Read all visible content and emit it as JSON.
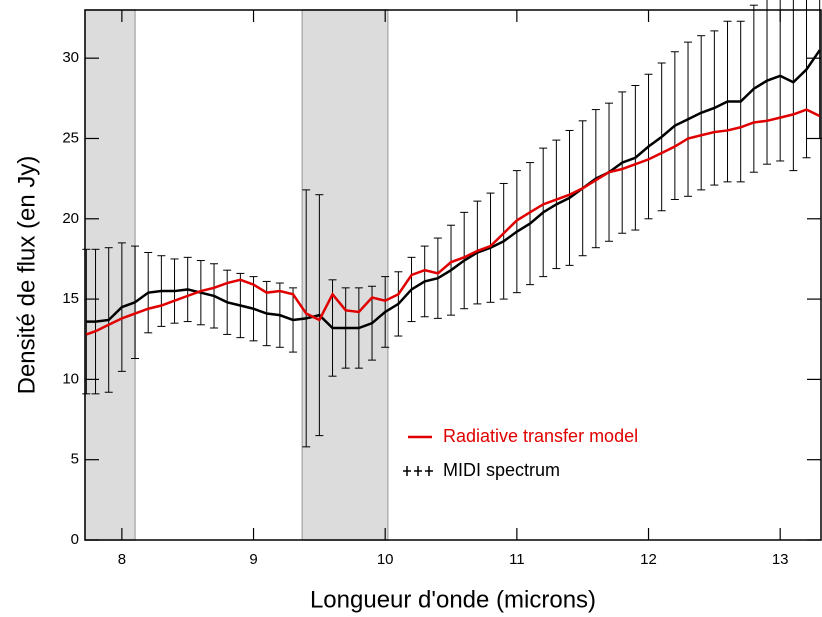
{
  "chart_data": {
    "type": "line",
    "xlabel": "Longueur d'onde (microns)",
    "ylabel": "Densité de flux (en Jy)",
    "x": [
      7.73,
      7.8,
      7.9,
      8.0,
      8.1,
      8.2,
      8.3,
      8.4,
      8.5,
      8.6,
      8.7,
      8.8,
      8.9,
      9.0,
      9.1,
      9.2,
      9.3,
      9.4,
      9.5,
      9.6,
      9.7,
      9.8,
      9.9,
      10.0,
      10.1,
      10.2,
      10.3,
      10.4,
      10.5,
      10.6,
      10.7,
      10.8,
      10.9,
      11.0,
      11.1,
      11.2,
      11.3,
      11.4,
      11.5,
      11.6,
      11.7,
      11.8,
      11.9,
      12.0,
      12.1,
      12.2,
      12.3,
      12.4,
      12.5,
      12.6,
      12.7,
      12.8,
      12.9,
      13.0,
      13.1,
      13.2,
      13.3
    ],
    "series": [
      {
        "name": "Radiative transfer model",
        "color": "#e00000",
        "values": [
          12.8,
          13.0,
          13.4,
          13.8,
          14.1,
          14.4,
          14.6,
          14.9,
          15.2,
          15.5,
          15.7,
          16.0,
          16.2,
          15.9,
          15.4,
          15.5,
          15.3,
          14.1,
          13.7,
          15.3,
          14.3,
          14.2,
          15.1,
          14.9,
          15.3,
          16.5,
          16.8,
          16.6,
          17.3,
          17.6,
          18.0,
          18.3,
          19.1,
          19.9,
          20.4,
          20.9,
          21.2,
          21.5,
          21.9,
          22.4,
          22.9,
          23.1,
          23.4,
          23.7,
          24.1,
          24.5,
          25.0,
          25.2,
          25.4,
          25.5,
          25.7,
          26.0,
          26.1,
          26.3,
          26.5,
          26.8,
          26.4
        ]
      },
      {
        "name": "MIDI spectrum",
        "color": "#000000",
        "values": [
          13.6,
          13.6,
          13.7,
          14.5,
          14.8,
          15.4,
          15.5,
          15.5,
          15.6,
          15.4,
          15.2,
          14.8,
          14.6,
          14.4,
          14.1,
          14.0,
          13.7,
          13.8,
          14.0,
          13.2,
          13.2,
          13.2,
          13.5,
          14.2,
          14.7,
          15.6,
          16.1,
          16.3,
          16.8,
          17.4,
          17.9,
          18.2,
          18.6,
          19.2,
          19.7,
          20.4,
          20.9,
          21.3,
          21.9,
          22.5,
          22.9,
          23.5,
          23.8,
          24.5,
          25.1,
          25.8,
          26.2,
          26.6,
          26.9,
          27.3,
          27.3,
          28.1,
          28.6,
          28.9,
          28.5,
          29.3,
          30.5
        ],
        "errors": [
          4.5,
          4.5,
          4.5,
          4.0,
          3.5,
          2.5,
          2.2,
          2.0,
          2.0,
          2.0,
          2.0,
          2.0,
          2.0,
          2.0,
          2.0,
          2.0,
          2.0,
          8.0,
          7.5,
          3.0,
          2.5,
          2.5,
          2.3,
          2.2,
          2.0,
          2.0,
          2.2,
          2.5,
          2.8,
          3.0,
          3.2,
          3.4,
          3.6,
          3.8,
          3.8,
          4.0,
          4.0,
          4.2,
          4.2,
          4.3,
          4.3,
          4.4,
          4.5,
          4.5,
          4.6,
          4.6,
          4.8,
          4.8,
          4.8,
          5.0,
          5.0,
          5.2,
          5.2,
          5.3,
          5.5,
          5.5,
          5.5
        ]
      }
    ],
    "shaded_regions": [
      [
        7.72,
        8.1
      ],
      [
        9.37,
        10.02
      ]
    ],
    "xlim": [
      7.72,
      13.31
    ],
    "ylim": [
      0,
      33
    ],
    "xticks": [
      8,
      9,
      10,
      11,
      12,
      13
    ],
    "yticks": [
      0,
      5,
      10,
      15,
      20,
      25,
      30
    ],
    "grid": false
  }
}
